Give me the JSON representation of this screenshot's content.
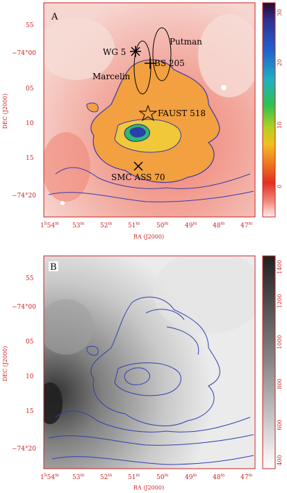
{
  "panelA": {
    "letter": "A",
    "ylabel": "DEC (J2000)",
    "xlabel": "RA (J2000)",
    "ytick_main": [
      "55",
      "−74°00",
      "05",
      "10",
      "15",
      "−74°20"
    ],
    "xtick_main": [
      "1",
      "53",
      "52",
      "51",
      "50",
      "49",
      "48",
      "47"
    ],
    "xtick_first_prefix": "1",
    "xtick_first_h": "h",
    "xtick_first_m": "54",
    "xtick_m": "m",
    "colorbar_ticks": [
      "30",
      "20",
      "10",
      "0"
    ],
    "labels": {
      "wg5": "WG 5",
      "putman": "Putman",
      "bs205": "BS 205",
      "marcelin": "Marcelin",
      "faust": "FAUST 518",
      "smc": "SMC ASS 70"
    }
  },
  "panelB": {
    "letter": "B",
    "ylabel": "DEC (J2000)",
    "xlabel": "RA (J2000)",
    "colorbar_ticks": [
      "1400",
      "1200",
      "1000",
      "800",
      "600",
      "400"
    ]
  }
}
